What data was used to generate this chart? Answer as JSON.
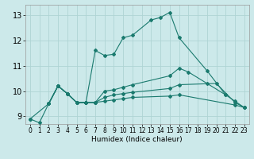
{
  "title": "",
  "xlabel": "Humidex (Indice chaleur)",
  "ylabel": "",
  "xlim": [
    -0.5,
    23.5
  ],
  "ylim": [
    8.7,
    13.4
  ],
  "yticks": [
    9,
    10,
    11,
    12,
    13
  ],
  "xticks": [
    0,
    1,
    2,
    3,
    4,
    5,
    6,
    7,
    8,
    9,
    10,
    11,
    12,
    13,
    14,
    15,
    16,
    17,
    18,
    19,
    20,
    21,
    22,
    23
  ],
  "background_color": "#cce9ea",
  "grid_color": "#afd4d4",
  "line_color": "#1a7a6e",
  "lines": [
    {
      "x": [
        0,
        1,
        2,
        3,
        4,
        5,
        6,
        7,
        8,
        9,
        10,
        11,
        13,
        14,
        15,
        16,
        19,
        21
      ],
      "y": [
        8.9,
        8.75,
        9.5,
        10.2,
        9.9,
        9.55,
        9.55,
        11.6,
        11.4,
        11.45,
        12.1,
        12.2,
        12.8,
        12.9,
        13.1,
        12.1,
        10.8,
        9.85
      ]
    },
    {
      "x": [
        0,
        2,
        3,
        4,
        5,
        6,
        7,
        8,
        9,
        10,
        11,
        15,
        16,
        17,
        19,
        21,
        22,
        23
      ],
      "y": [
        8.9,
        9.5,
        10.2,
        9.9,
        9.55,
        9.55,
        9.55,
        10.0,
        10.05,
        10.15,
        10.25,
        10.6,
        10.9,
        10.75,
        10.3,
        9.85,
        9.6,
        9.35
      ]
    },
    {
      "x": [
        2,
        3,
        4,
        5,
        6,
        7,
        8,
        9,
        10,
        11,
        15,
        16,
        20,
        22,
        23
      ],
      "y": [
        9.5,
        10.2,
        9.9,
        9.55,
        9.55,
        9.55,
        9.75,
        9.85,
        9.9,
        9.95,
        10.1,
        10.25,
        10.3,
        9.55,
        9.35
      ]
    },
    {
      "x": [
        2,
        3,
        4,
        5,
        6,
        7,
        8,
        9,
        10,
        11,
        15,
        16,
        22,
        23
      ],
      "y": [
        9.5,
        10.2,
        9.9,
        9.55,
        9.55,
        9.55,
        9.6,
        9.65,
        9.7,
        9.75,
        9.8,
        9.85,
        9.45,
        9.35
      ]
    }
  ]
}
